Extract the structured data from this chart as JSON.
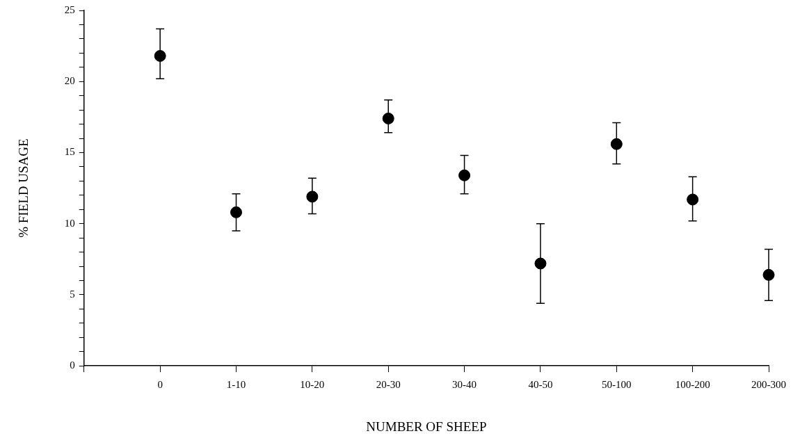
{
  "chart_data": {
    "type": "scatter",
    "xlabel": "NUMBER OF SHEEP",
    "ylabel": "% FIELD USAGE",
    "categories": [
      "0",
      "1-10",
      "10-20",
      "20-30",
      "30-40",
      "40-50",
      "50-100",
      "100-200",
      "200-300"
    ],
    "values": [
      21.8,
      10.8,
      11.9,
      17.4,
      13.4,
      7.2,
      15.6,
      11.7,
      6.4
    ],
    "errors": [
      [
        20.2,
        23.7
      ],
      [
        9.5,
        12.1
      ],
      [
        10.7,
        13.2
      ],
      [
        16.4,
        18.7
      ],
      [
        12.1,
        14.8
      ],
      [
        4.4,
        10.0
      ],
      [
        14.2,
        17.1
      ],
      [
        10.2,
        13.3
      ],
      [
        4.6,
        8.2
      ]
    ],
    "color": "#000000",
    "marker": "circle",
    "ylim": [
      0,
      25
    ],
    "yticks": [
      0,
      {
        "value": 1,
        "label": null
      },
      {
        "value": 2,
        "label": null
      },
      {
        "value": 3,
        "label": null
      },
      {
        "value": 4,
        "label": null
      },
      5,
      {
        "value": 6,
        "label": null
      },
      {
        "value": 7,
        "label": null
      },
      {
        "value": 8,
        "label": null
      },
      {
        "value": 9,
        "label": null
      },
      10,
      {
        "value": 11,
        "label": null
      },
      {
        "value": 12,
        "label": null
      },
      {
        "value": 13,
        "label": null
      },
      {
        "value": 14,
        "label": null
      },
      15,
      {
        "value": 16,
        "label": null
      },
      {
        "value": 17,
        "label": null
      },
      {
        "value": 18,
        "label": null
      },
      {
        "value": 19,
        "label": null
      },
      20,
      {
        "value": 21,
        "label": null
      },
      {
        "value": 22,
        "label": null
      },
      {
        "value": 23,
        "label": null
      },
      {
        "value": 24,
        "label": null
      },
      25
    ],
    "grid": false,
    "legend": false
  }
}
